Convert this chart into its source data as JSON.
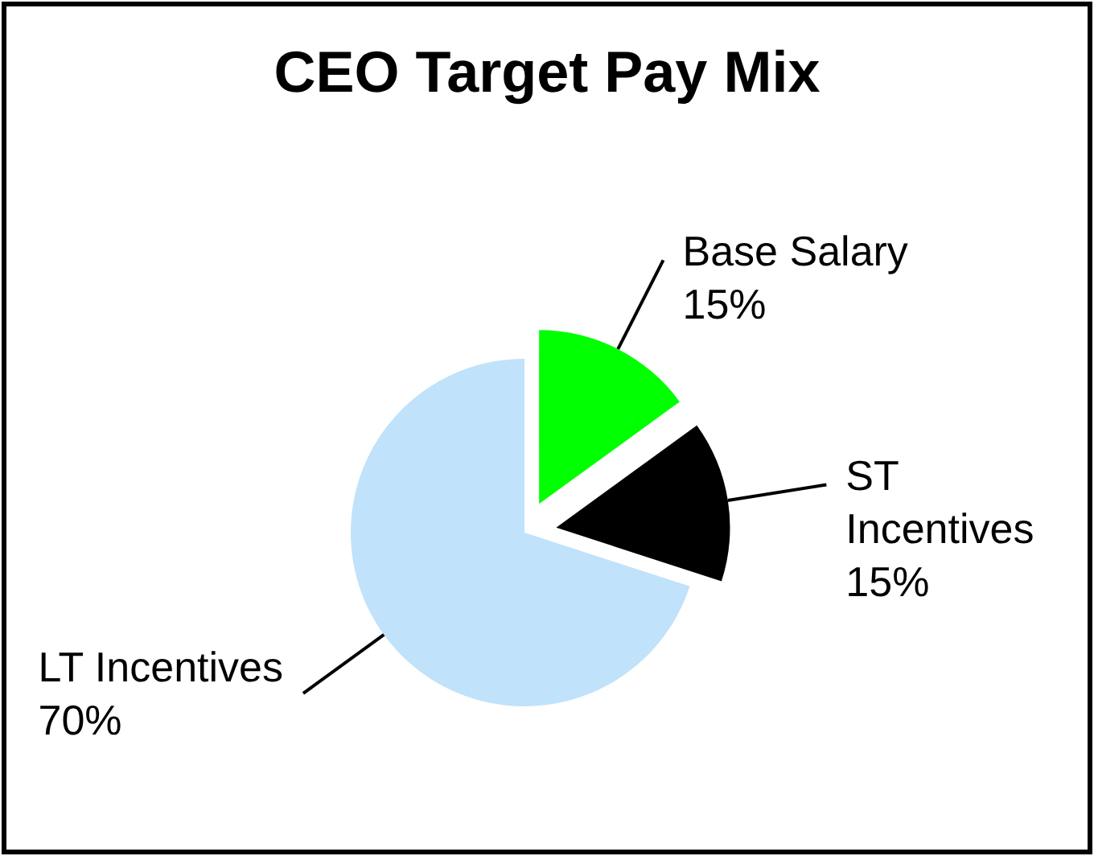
{
  "chart_data": {
    "type": "pie",
    "title": "CEO Target Pay Mix",
    "categories": [
      "Base Salary",
      "ST Incentives",
      "LT Incentives"
    ],
    "values": [
      15,
      15,
      70
    ],
    "colors": [
      "#00ff00",
      "#000000",
      "#c0e2fa"
    ],
    "value_labels": [
      "15%",
      "15%",
      "70%"
    ]
  }
}
